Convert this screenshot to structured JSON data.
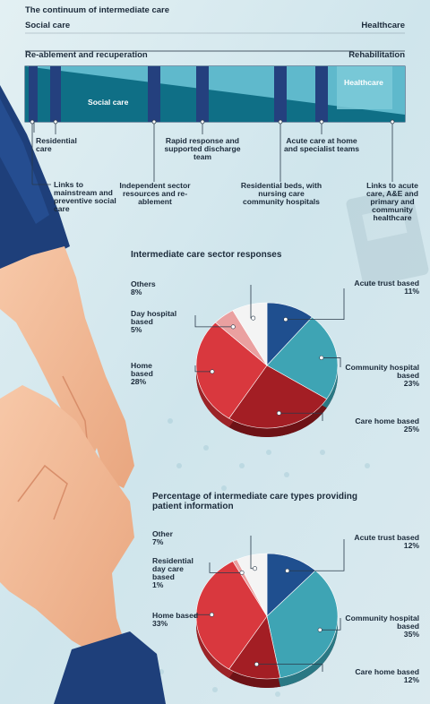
{
  "header": {
    "title": "The continuum of intermediate care",
    "left_label": "Social care",
    "right_label": "Healthcare",
    "left_sub": "Re-ablement and recuperation",
    "right_sub": "Rehabilitation"
  },
  "continuum": {
    "social_label": "Social care",
    "health_label": "Healthcare",
    "items": [
      "Residential care",
      "Links to mainstream and preventive social care",
      "Independent sector resources and re-ablement",
      "Rapid response and supported discharge team",
      "Residential beds, with nursing care community hospitals",
      "Acute care at home and specialist teams",
      "Links to acute care, A&E and primary and community healthcare"
    ]
  },
  "colors": {
    "navy": "#1f4f8f",
    "teal": "#3ea4b4",
    "dark_red": "#a31e24",
    "red": "#d9383e",
    "pink": "#eaa0a0",
    "white": "#f4f4f4",
    "bar_dark": "#0f6f86",
    "bar_light": "#5fb9cc"
  },
  "chart_data": [
    {
      "type": "pie",
      "title": "Intermediate care sector responses",
      "slices": [
        {
          "label": "Acute trust based",
          "value": 11,
          "display": "11%"
        },
        {
          "label": "Community hospital based",
          "value": 23,
          "display": "23%"
        },
        {
          "label": "Care home based",
          "value": 25,
          "display": "25%"
        },
        {
          "label": "Home based",
          "value": 28,
          "display": "28%"
        },
        {
          "label": "Day hospital based",
          "value": 5,
          "display": "5%"
        },
        {
          "label": "Others",
          "value": 8,
          "display": "8%"
        }
      ]
    },
    {
      "type": "pie",
      "title": "Percentage of intermediate care types providing patient information",
      "slices": [
        {
          "label": "Acute trust based",
          "value": 12,
          "display": "12%"
        },
        {
          "label": "Community hospital based",
          "value": 35,
          "display": "35%"
        },
        {
          "label": "Care home based",
          "value": 12,
          "display": "12%"
        },
        {
          "label": "Home based",
          "value": 33,
          "display": "33%"
        },
        {
          "label": "Residential day care based",
          "value": 1,
          "display": "1%"
        },
        {
          "label": "Other",
          "value": 7,
          "display": "7%"
        }
      ]
    }
  ]
}
